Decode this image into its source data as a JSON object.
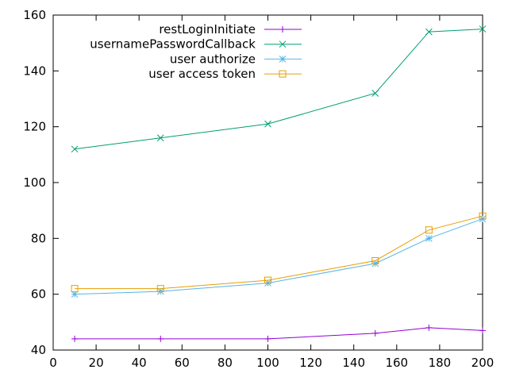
{
  "chart_data": {
    "type": "line",
    "title": "",
    "xlabel": "",
    "ylabel": "",
    "xlim": [
      0,
      200
    ],
    "ylim": [
      40,
      160
    ],
    "xticks": [
      0,
      20,
      40,
      60,
      80,
      100,
      120,
      140,
      160,
      180,
      200
    ],
    "yticks": [
      40,
      60,
      80,
      100,
      120,
      140,
      160
    ],
    "grid": false,
    "legend_position": "top-left",
    "x": [
      10,
      50,
      100,
      150,
      175,
      200
    ],
    "series": [
      {
        "name": "restLoginInitiate",
        "color": "#9400d3",
        "marker": "plus",
        "values": [
          44,
          44,
          44,
          46,
          48,
          47
        ]
      },
      {
        "name": "usernamePasswordCallback",
        "color": "#009e73",
        "marker": "cross",
        "values": [
          112,
          116,
          121,
          132,
          154,
          155
        ]
      },
      {
        "name": "user authorize",
        "color": "#56b4e9",
        "marker": "star",
        "values": [
          60,
          61,
          64,
          71,
          80,
          87
        ]
      },
      {
        "name": "user access token",
        "color": "#e69f00",
        "marker": "square",
        "values": [
          62,
          62,
          65,
          72,
          83,
          88
        ]
      }
    ]
  }
}
